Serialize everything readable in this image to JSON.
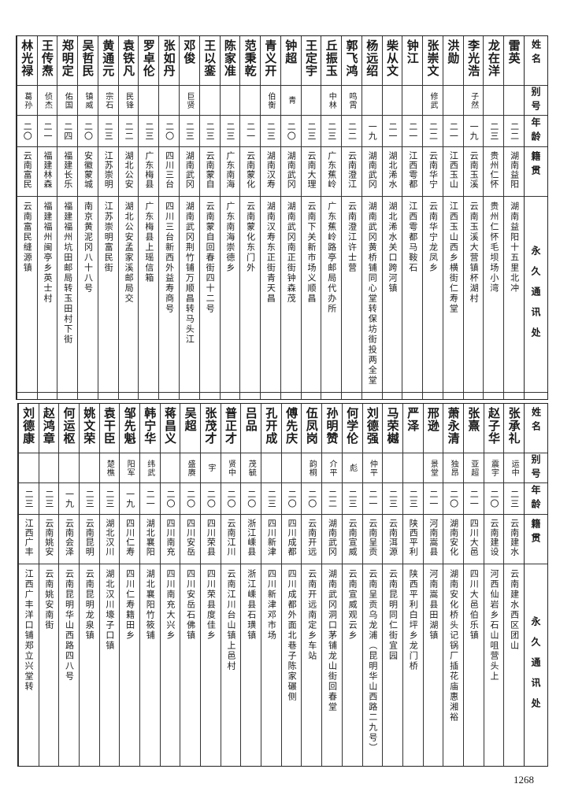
{
  "headers": {
    "name": "姓名",
    "alias": "别号",
    "age": "年龄",
    "origin": "籍贯",
    "address": "永久通讯处"
  },
  "top_table": [
    {
      "name": "雷英",
      "alias": "",
      "age": "二二",
      "origin": "湖南益阳",
      "address": "湖南益阳十五里北冲"
    },
    {
      "name": "龙在洋",
      "alias": "",
      "age": "二三",
      "origin": "贵州仁怀",
      "address": "贵州仁怀毛坝场小湾"
    },
    {
      "name": "李光浩",
      "alias": "子然",
      "age": "一九",
      "origin": "云南玉溪",
      "address": "云南玉溪大营镇杯湖村"
    },
    {
      "name": "洪勋",
      "alias": "",
      "age": "二一",
      "origin": "江西玉山",
      "address": "江西玉山西乡横街仁寿堂"
    },
    {
      "name": "张崇文",
      "alias": "修武",
      "age": "二二",
      "origin": "云南华宁",
      "address": "云南华宁龙凤乡"
    },
    {
      "name": "钟江",
      "alias": "",
      "age": "二一",
      "origin": "江西雩都",
      "address": "江西雩都马鞍石"
    },
    {
      "name": "柴从文",
      "alias": "",
      "age": "二一",
      "origin": "湖北浠水",
      "address": "湖北浠水关口跨河镇"
    },
    {
      "name": "杨远绍",
      "alias": "",
      "age": "一九",
      "origin": "湖南武冈",
      "address": "湖南武冈黄桥铺同心堂转保坊街投两全堂"
    },
    {
      "name": "郭飞鸿",
      "alias": "鸣霄",
      "age": "二二",
      "origin": "云南澄江",
      "address": "云南澄江许士营"
    },
    {
      "name": "丘振玉",
      "alias": "中林",
      "age": "二三",
      "origin": "广东蕉岭",
      "address": "广东蕉岭路亭邮局代办所"
    },
    {
      "name": "王定宇",
      "alias": "",
      "age": "二三",
      "origin": "云南大理",
      "address": "云南下关新市场义顺昌"
    },
    {
      "name": "钟超",
      "alias": "青",
      "age": "二〇",
      "origin": "湖南武冈",
      "address": "湖南武冈南正街钟森茂"
    },
    {
      "name": "青义开",
      "alias": "伯衡",
      "age": "二三",
      "origin": "湖南汉寿",
      "address": "湖南汉寿东正街青天昌"
    },
    {
      "name": "范秉乾",
      "alias": "",
      "age": "二一",
      "origin": "云南蒙化",
      "address": "云南蒙化东门外"
    },
    {
      "name": "陈家准",
      "alias": "",
      "age": "二三",
      "origin": "广东南海",
      "address": "广东南海崇德乡"
    },
    {
      "name": "王以銮",
      "alias": "",
      "age": "二三",
      "origin": "云南蒙自",
      "address": "云南蒙自回春街四十二号"
    },
    {
      "name": "邓俊",
      "alias": "巨贤",
      "age": "二三",
      "origin": "湖南武冈",
      "address": "湖南武冈荆竹铺万顺昌转马头江"
    },
    {
      "name": "张如丹",
      "alias": "",
      "age": "二〇",
      "origin": "四川三台",
      "address": "四川三台新西外益寿商号"
    },
    {
      "name": "罗卓伦",
      "alias": "",
      "age": "二三",
      "origin": "广东梅县",
      "address": "广东梅县上瑶信箱"
    },
    {
      "name": "袁铁凡",
      "alias": "民锋",
      "age": "二二",
      "origin": "湖北公安",
      "address": "湖北公安孟家溪邮局交"
    },
    {
      "name": "黄通元",
      "alias": "宗石",
      "age": "二三",
      "origin": "江苏崇明",
      "address": "江苏崇明富民街"
    },
    {
      "name": "吴哲民",
      "alias": "镇威",
      "age": "二〇",
      "origin": "安徽蒙城",
      "address": "南京黄泥冈八十八号"
    },
    {
      "name": "郑明定",
      "alias": "佑国",
      "age": "二四",
      "origin": "福建长乐",
      "address": "福建福州坑田邮局转玉田村下街"
    },
    {
      "name": "王传焘",
      "alias": "侦杰",
      "age": "二一",
      "origin": "福建林森",
      "address": "福建福州闽亭乡英士村"
    },
    {
      "name": "林光禄",
      "alias": "葛孙",
      "age": "二〇",
      "origin": "云南富民",
      "address": "云南富民缝源镇"
    }
  ],
  "bottom_table": [
    {
      "name": "张承礼",
      "alias": "运中",
      "age": "二三",
      "origin": "云南建水",
      "address": "云南建水西区团山"
    },
    {
      "name": "赵子华",
      "alias": "震宇",
      "age": "二〇",
      "origin": "云南建设",
      "address": "河西仙岩乡石山咀营头上"
    },
    {
      "name": "张熹",
      "alias": "亚超",
      "age": "二一",
      "origin": "四川大邑",
      "address": "四川大邑伯乐镇"
    },
    {
      "name": "萧永清",
      "alias": "独昂",
      "age": "二〇",
      "origin": "湖南安化",
      "address": "湖南安化桥头记锅厂插花庙惠湘裕"
    },
    {
      "name": "邢逊",
      "alias": "景堂",
      "age": "二一",
      "origin": "河南嵩县",
      "address": "河南嵩县田湖镇"
    },
    {
      "name": "严泽",
      "alias": "",
      "age": "二三",
      "origin": "陕西平利",
      "address": "陕西平利白坪乡龙门桥"
    },
    {
      "name": "马荣樾",
      "alias": "",
      "age": "二三",
      "origin": "云南洱源",
      "address": "云南昆明同仁街宜园"
    },
    {
      "name": "刘德强",
      "alias": "仲平",
      "age": "二一",
      "origin": "云南呈贡",
      "address": "云南呈贡乌龙浦（昆明华山西路二九号）"
    },
    {
      "name": "何学伦",
      "alias": "彪",
      "age": "二三",
      "origin": "云南宣威",
      "address": "云南宣威观云乡"
    },
    {
      "name": "孙明赞",
      "alias": "介平",
      "age": "二二",
      "origin": "湖南武冈",
      "address": "湖南武冈洞口茅铺龙山街回春堂"
    },
    {
      "name": "伍凤岗",
      "alias": "韵桐",
      "age": "二〇",
      "origin": "云南开远",
      "address": "云南开远南定乡车站"
    },
    {
      "name": "傅先庆",
      "alias": "",
      "age": "二〇",
      "origin": "四川成都",
      "address": "四川成都外面北巷子陈家碾侧"
    },
    {
      "name": "孔开成",
      "alias": "",
      "age": "二三",
      "origin": "四川新津",
      "address": "四川新津邓市场"
    },
    {
      "name": "吕品",
      "alias": "茂毓",
      "age": "二〇",
      "origin": "浙江嵊县",
      "address": "浙江嵊县石璜镇"
    },
    {
      "name": "普正才",
      "alias": "贤中",
      "age": "二〇",
      "origin": "云南江川",
      "address": "云南江川台山镇上邑村"
    },
    {
      "name": "张茂才",
      "alias": "宇",
      "age": "二〇",
      "origin": "四川荣县",
      "address": "四川荣县度佳乡"
    },
    {
      "name": "吴超",
      "alias": "盛赓",
      "age": "二〇",
      "origin": "四川安岳",
      "address": "四川安岳石佛镇"
    },
    {
      "name": "蒋昌义",
      "alias": "",
      "age": "二〇",
      "origin": "四川南充",
      "address": "四川南充大兴乡"
    },
    {
      "name": "韩宁华",
      "alias": "纬武",
      "age": "二一",
      "origin": "湖北襄阳",
      "address": "湖北襄阳竹筱铺"
    },
    {
      "name": "邹先魁",
      "alias": "阳军",
      "age": "一九",
      "origin": "四川仁寿",
      "address": "四川仁寿籍田乡"
    },
    {
      "name": "袁干臣",
      "alias": "楚樵",
      "age": "二三",
      "origin": "湖北汉川",
      "address": "湖北汉川壕子口镇"
    },
    {
      "name": "姚文荣",
      "alias": "",
      "age": "二三",
      "origin": "云南昆明",
      "address": "云南昆明龙泉镇"
    },
    {
      "name": "何运枢",
      "alias": "",
      "age": "一九",
      "origin": "云南会泽",
      "address": "云南昆明华山西路四八号"
    },
    {
      "name": "赵鸿章",
      "alias": "",
      "age": "二三",
      "origin": "云南姚安",
      "address": "云南姚安南街"
    },
    {
      "name": "刘德康",
      "alias": "",
      "age": "二三",
      "origin": "江西广丰",
      "address": "江西广丰洋口铺郑立兴堂转"
    }
  ],
  "page_number": "1268"
}
